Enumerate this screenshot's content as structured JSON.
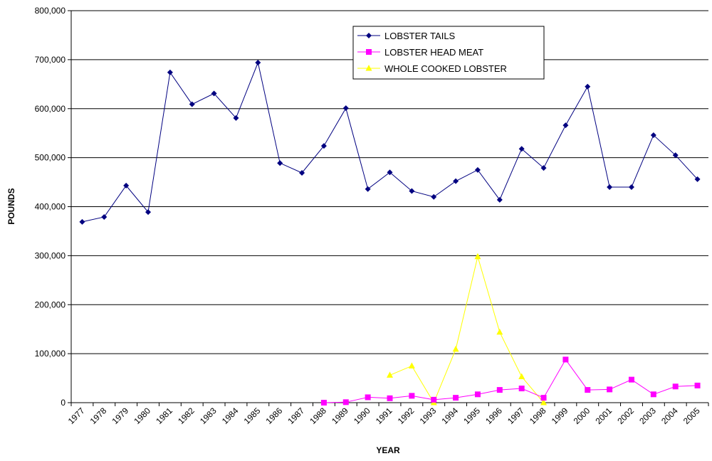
{
  "chart_data": {
    "type": "line",
    "title": "",
    "xlabel": "YEAR",
    "ylabel": "POUNDS",
    "ylim": [
      0,
      800000
    ],
    "yticks": [
      0,
      100000,
      200000,
      300000,
      400000,
      500000,
      600000,
      700000,
      800000
    ],
    "ytick_labels": [
      "0",
      "100,000",
      "200,000",
      "300,000",
      "400,000",
      "500,000",
      "600,000",
      "700,000",
      "800,000"
    ],
    "grid": "horizontal",
    "legend_position": "top-center",
    "categories": [
      "1977",
      "1978",
      "1979",
      "1980",
      "1981",
      "1982",
      "1983",
      "1984",
      "1985",
      "1986",
      "1987",
      "1988",
      "1989",
      "1990",
      "1991",
      "1992",
      "1993",
      "1994",
      "1995",
      "1996",
      "1997",
      "1998",
      "1999",
      "2000",
      "2001",
      "2002",
      "2003",
      "2004",
      "2005"
    ],
    "series": [
      {
        "name": "LOBSTER TAILS",
        "color": "#000080",
        "marker": "diamond",
        "values": [
          369000,
          379000,
          443000,
          389000,
          674000,
          609000,
          631000,
          581000,
          694000,
          489000,
          469000,
          524000,
          601000,
          436000,
          470000,
          432000,
          420000,
          452000,
          475000,
          414000,
          518000,
          479000,
          566000,
          645000,
          440000,
          440000,
          546000,
          505000,
          456000
        ]
      },
      {
        "name": "LOBSTER HEAD MEAT",
        "color": "#FF00FF",
        "marker": "square",
        "values": [
          null,
          null,
          null,
          null,
          null,
          null,
          null,
          null,
          null,
          null,
          null,
          0,
          1000,
          11000,
          9000,
          14000,
          6000,
          10000,
          17000,
          26000,
          29000,
          10000,
          88000,
          26000,
          27000,
          47000,
          17000,
          33000,
          35000
        ]
      },
      {
        "name": "WHOLE COOKED LOBSTER",
        "color": "#FFFF00",
        "marker": "triangle",
        "values": [
          null,
          null,
          null,
          null,
          null,
          null,
          null,
          null,
          null,
          null,
          null,
          null,
          null,
          null,
          56000,
          75000,
          0,
          109000,
          298000,
          144000,
          53000,
          0,
          null,
          null,
          null,
          null,
          null,
          null,
          null
        ]
      }
    ]
  }
}
